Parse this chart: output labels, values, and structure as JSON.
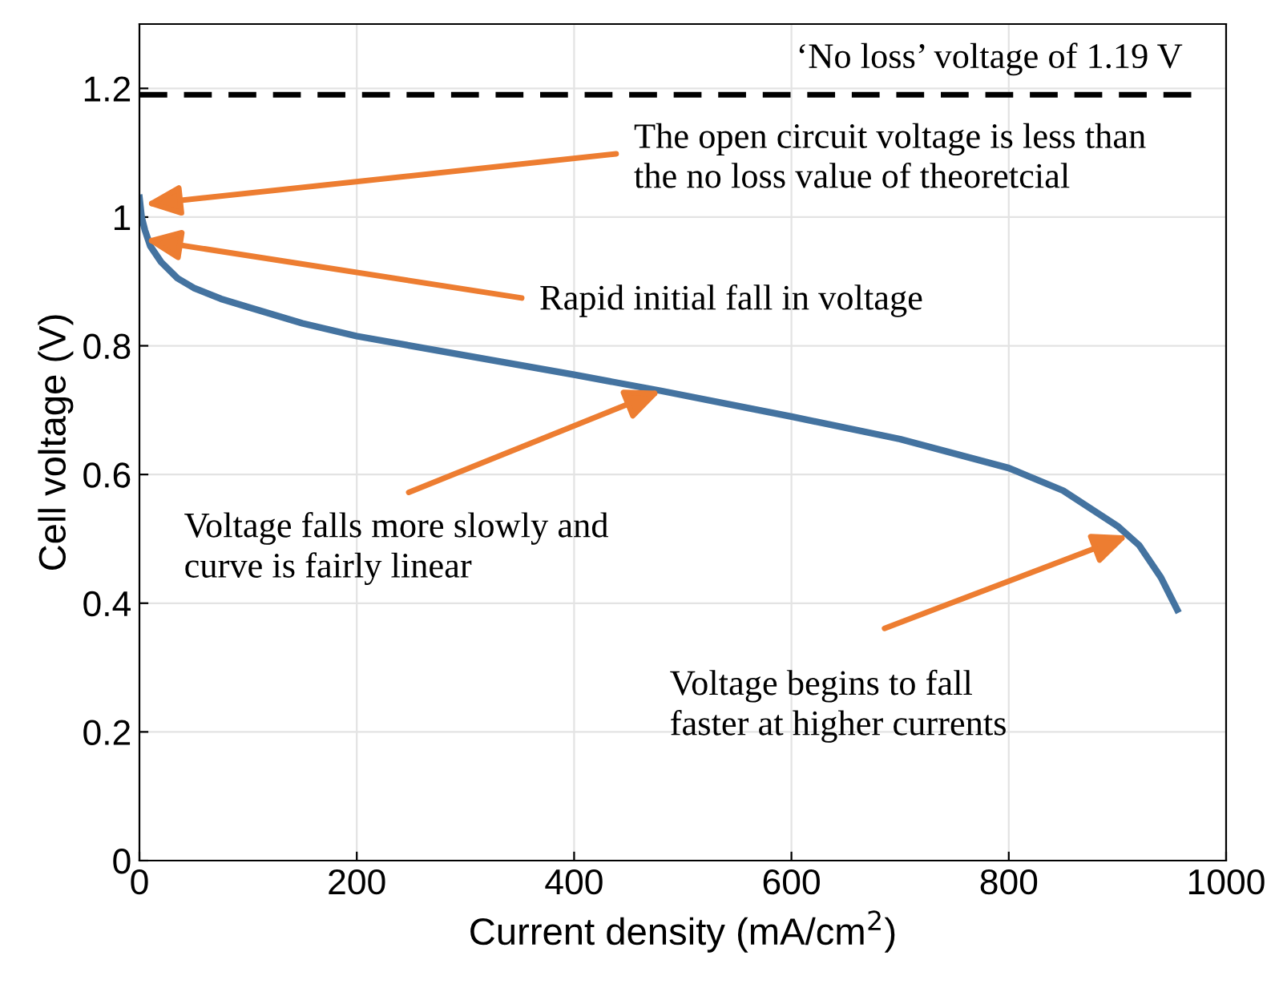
{
  "chart_data": {
    "type": "line",
    "xlabel": "Current density (mA/cm$^{2}$)",
    "ylabel": "Cell voltage (V)",
    "x": [
      0,
      2,
      5,
      10,
      20,
      35,
      50,
      75,
      100,
      150,
      200,
      300,
      400,
      480,
      600,
      700,
      800,
      850,
      900,
      920,
      940,
      955
    ],
    "series": [
      {
        "color": "#4473a0",
        "values": [
          1.03,
          1.0,
          0.98,
          0.955,
          0.93,
          0.905,
          0.89,
          0.873,
          0.86,
          0.835,
          0.815,
          0.785,
          0.755,
          0.73,
          0.69,
          0.655,
          0.61,
          0.575,
          0.52,
          0.49,
          0.44,
          0.39
        ]
      }
    ],
    "xlim": [
      0,
      1000
    ],
    "ylim": [
      0,
      1.3
    ],
    "xticks": [
      0,
      200,
      400,
      600,
      800,
      1000
    ],
    "yticks": [
      0,
      0.2,
      0.4,
      0.6,
      0.8,
      1,
      1.2
    ],
    "grid": true,
    "line_style": "solid",
    "marker": "none",
    "ref_lines": [
      {
        "axis": "y",
        "value": 1.19,
        "label": "‘No loss’ voltage of 1.19 V",
        "color": "#000000",
        "line_style": "dashed"
      }
    ],
    "annotations": [
      {
        "text": "The open circuit voltage is less than\nthe no loss value of theoretcial",
        "x": 5,
        "y": 1.02
      },
      {
        "text": "Rapid initial fall in voltage",
        "x": 5,
        "y": 0.965
      },
      {
        "text": "Voltage falls more slowly and\ncurve is fairly linear",
        "x": 480,
        "y": 0.73
      },
      {
        "text": "Voltage begins to fall\nfaster at higher currents",
        "x": 910,
        "y": 0.505
      }
    ]
  }
}
